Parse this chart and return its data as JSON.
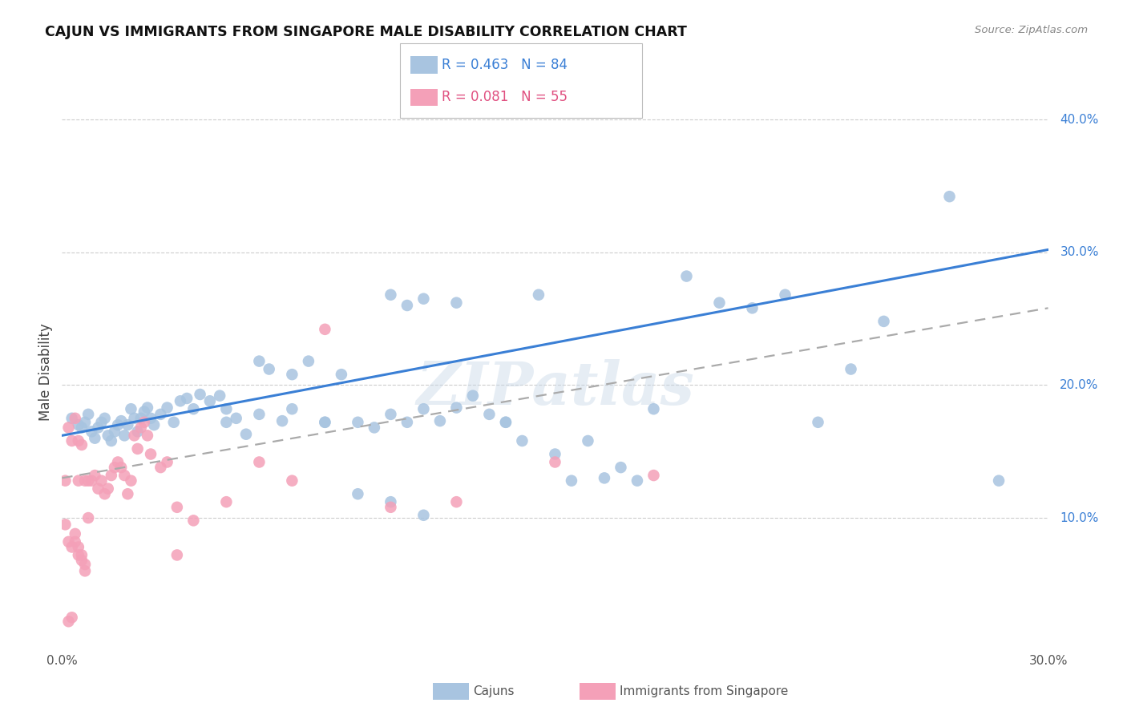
{
  "title": "CAJUN VS IMMIGRANTS FROM SINGAPORE MALE DISABILITY CORRELATION CHART",
  "source": "Source: ZipAtlas.com",
  "ylabel": "Male Disability",
  "xlim": [
    0.0,
    0.3
  ],
  "ylim": [
    0.0,
    0.42
  ],
  "x_ticks": [
    0.0,
    0.05,
    0.1,
    0.15,
    0.2,
    0.25,
    0.3
  ],
  "x_tick_labels": [
    "0.0%",
    "",
    "",
    "",
    "",
    "",
    "30.0%"
  ],
  "y_ticks_right": [
    0.1,
    0.2,
    0.3,
    0.4
  ],
  "y_tick_labels_right": [
    "10.0%",
    "20.0%",
    "30.0%",
    "40.0%"
  ],
  "grid_color": "#cccccc",
  "background_color": "#ffffff",
  "watermark": "ZIPatlas",
  "legend_r1": "R = 0.463",
  "legend_n1": "N = 84",
  "legend_r2": "R = 0.081",
  "legend_n2": "N = 55",
  "cajun_color": "#a8c4e0",
  "singapore_color": "#f4a0b8",
  "cajun_line_color": "#3a7fd5",
  "singapore_line_color": "#aaaaaa",
  "cajun_scatter_x": [
    0.003,
    0.005,
    0.006,
    0.007,
    0.008,
    0.009,
    0.01,
    0.011,
    0.012,
    0.013,
    0.014,
    0.015,
    0.016,
    0.017,
    0.018,
    0.019,
    0.02,
    0.021,
    0.022,
    0.023,
    0.024,
    0.025,
    0.026,
    0.027,
    0.028,
    0.03,
    0.032,
    0.034,
    0.036,
    0.038,
    0.04,
    0.042,
    0.045,
    0.048,
    0.05,
    0.053,
    0.056,
    0.06,
    0.063,
    0.067,
    0.07,
    0.075,
    0.08,
    0.085,
    0.09,
    0.095,
    0.1,
    0.105,
    0.11,
    0.115,
    0.12,
    0.125,
    0.13,
    0.135,
    0.14,
    0.1,
    0.105,
    0.11,
    0.05,
    0.06,
    0.07,
    0.08,
    0.15,
    0.16,
    0.17,
    0.18,
    0.19,
    0.2,
    0.21,
    0.22,
    0.23,
    0.24,
    0.25,
    0.27,
    0.285,
    0.155,
    0.165,
    0.175,
    0.145,
    0.135,
    0.09,
    0.1,
    0.11,
    0.12
  ],
  "cajun_scatter_y": [
    0.175,
    0.17,
    0.168,
    0.172,
    0.178,
    0.165,
    0.16,
    0.168,
    0.172,
    0.175,
    0.162,
    0.158,
    0.165,
    0.17,
    0.173,
    0.162,
    0.17,
    0.182,
    0.175,
    0.165,
    0.175,
    0.18,
    0.183,
    0.175,
    0.17,
    0.178,
    0.183,
    0.172,
    0.188,
    0.19,
    0.182,
    0.193,
    0.188,
    0.192,
    0.172,
    0.175,
    0.163,
    0.178,
    0.212,
    0.173,
    0.208,
    0.218,
    0.172,
    0.208,
    0.172,
    0.168,
    0.178,
    0.172,
    0.182,
    0.173,
    0.183,
    0.192,
    0.178,
    0.172,
    0.158,
    0.268,
    0.26,
    0.265,
    0.182,
    0.218,
    0.182,
    0.172,
    0.148,
    0.158,
    0.138,
    0.182,
    0.282,
    0.262,
    0.258,
    0.268,
    0.172,
    0.212,
    0.248,
    0.342,
    0.128,
    0.128,
    0.13,
    0.128,
    0.268,
    0.172,
    0.118,
    0.112,
    0.102,
    0.262
  ],
  "singapore_scatter_x": [
    0.001,
    0.001,
    0.002,
    0.002,
    0.002,
    0.003,
    0.003,
    0.003,
    0.004,
    0.004,
    0.004,
    0.005,
    0.005,
    0.005,
    0.005,
    0.006,
    0.006,
    0.006,
    0.007,
    0.007,
    0.007,
    0.008,
    0.008,
    0.009,
    0.01,
    0.011,
    0.012,
    0.013,
    0.014,
    0.015,
    0.016,
    0.017,
    0.018,
    0.019,
    0.02,
    0.021,
    0.022,
    0.023,
    0.024,
    0.025,
    0.026,
    0.027,
    0.03,
    0.032,
    0.035,
    0.04,
    0.05,
    0.06,
    0.07,
    0.08,
    0.1,
    0.12,
    0.15,
    0.18,
    0.035
  ],
  "singapore_scatter_y": [
    0.128,
    0.095,
    0.082,
    0.022,
    0.168,
    0.025,
    0.078,
    0.158,
    0.082,
    0.088,
    0.175,
    0.072,
    0.078,
    0.128,
    0.158,
    0.068,
    0.072,
    0.155,
    0.06,
    0.065,
    0.128,
    0.1,
    0.128,
    0.128,
    0.132,
    0.122,
    0.128,
    0.118,
    0.122,
    0.132,
    0.138,
    0.142,
    0.138,
    0.132,
    0.118,
    0.128,
    0.162,
    0.152,
    0.168,
    0.172,
    0.162,
    0.148,
    0.138,
    0.142,
    0.108,
    0.098,
    0.112,
    0.142,
    0.128,
    0.242,
    0.108,
    0.112,
    0.142,
    0.132,
    0.072
  ],
  "cajun_line_x": [
    0.0,
    0.3
  ],
  "cajun_line_y": [
    0.162,
    0.302
  ],
  "singapore_line_x": [
    0.0,
    0.3
  ],
  "singapore_line_y": [
    0.13,
    0.258
  ]
}
